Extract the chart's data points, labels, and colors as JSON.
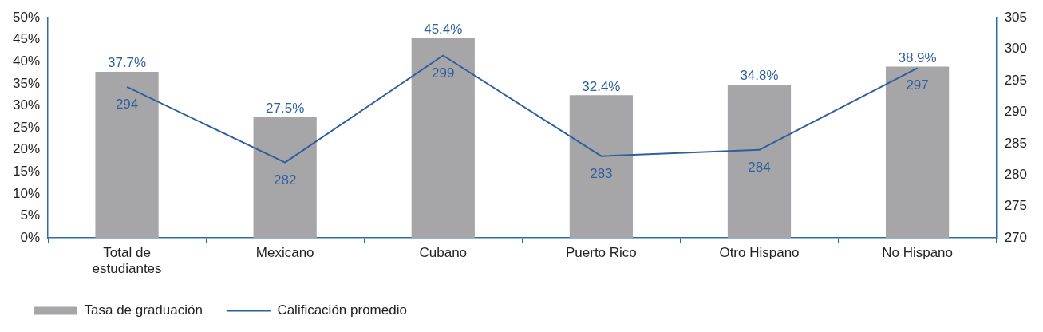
{
  "chart_data": {
    "type": "bar",
    "categories": [
      "Total de estudiantes",
      "Mexicano",
      "Cubano",
      "Puerto Rico",
      "Otro Hispano",
      "No Hispano"
    ],
    "series": [
      {
        "name": "Tasa de graduación",
        "color": "#a6a6a8",
        "values": [
          37.7,
          27.5,
          45.4,
          32.4,
          34.8,
          38.9
        ],
        "value_labels": [
          "37.7%",
          "27.5%",
          "45.4%",
          "32.4%",
          "34.8%",
          "38.9%"
        ]
      },
      {
        "name": "Calificación promedio",
        "type": "line",
        "axis": "y2",
        "color": "#2f5f9e",
        "values": [
          294,
          282,
          299,
          283,
          284,
          297
        ],
        "value_labels": [
          "294",
          "282",
          "299",
          "283",
          "284",
          "297"
        ]
      }
    ],
    "ylim": [
      0,
      50
    ],
    "yticks": [
      {
        "value": 0,
        "label": "0%"
      },
      {
        "value": 5,
        "label": "5%"
      },
      {
        "value": 10,
        "label": "10%"
      },
      {
        "value": 15,
        "label": "15%"
      },
      {
        "value": 20,
        "label": "20%"
      },
      {
        "value": 25,
        "label": "25%"
      },
      {
        "value": 30,
        "label": "30%"
      },
      {
        "value": 35,
        "label": "35%"
      },
      {
        "value": 40,
        "label": "40%"
      },
      {
        "value": 45,
        "label": "45%"
      },
      {
        "value": 50,
        "label": "50%"
      }
    ],
    "y2lim": [
      270,
      305
    ],
    "y2ticks": [
      270,
      275,
      280,
      285,
      290,
      295,
      300,
      305
    ],
    "grid": false,
    "legend": "bottom left",
    "marker": "none",
    "line_style": "solid"
  }
}
